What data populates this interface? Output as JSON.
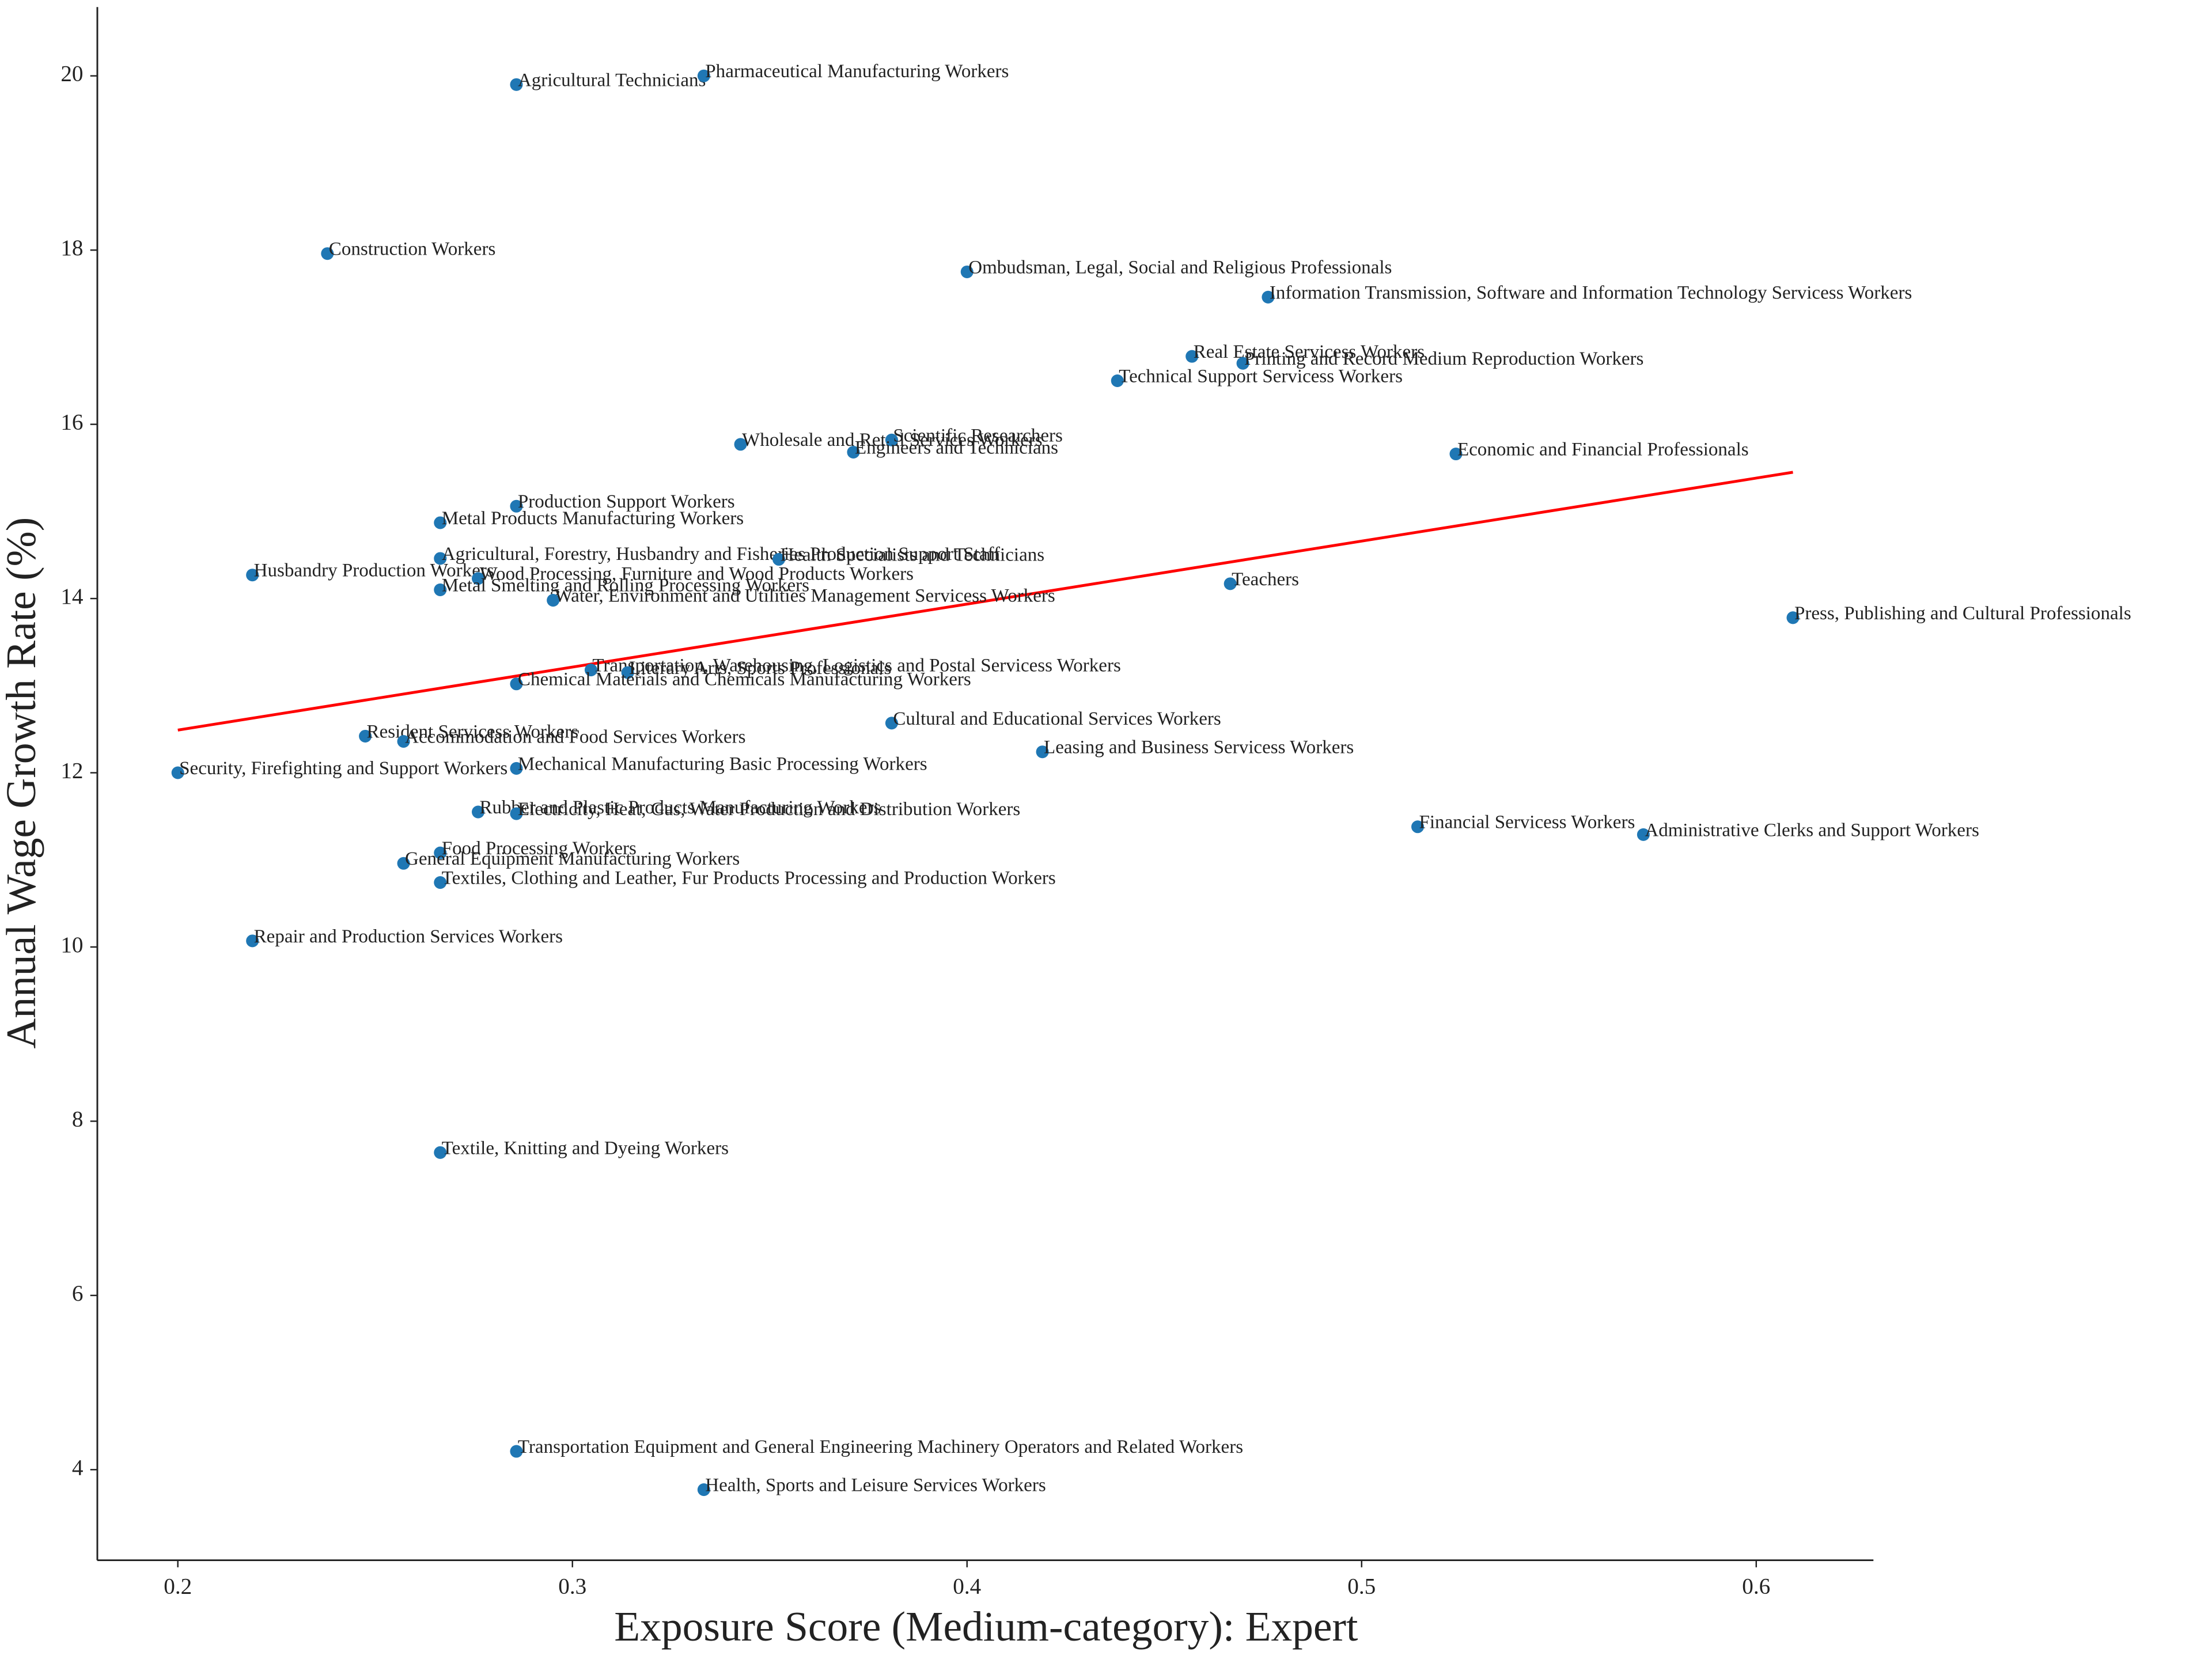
{
  "chart_data": {
    "type": "scatter",
    "x_label": "Exposure Score (Medium-category): Expert",
    "y_label": "Annual Wage Growth Rate (%)",
    "color": "#1f77b4",
    "trendline_color": "#ff0000",
    "xlim": [
      0.1796,
      0.6297
    ],
    "ylim": [
      2.96,
      20.79
    ],
    "xticks": [
      0.2,
      0.3,
      0.4,
      0.5,
      0.6
    ],
    "yticks": [
      4,
      6,
      8,
      10,
      12,
      14,
      16,
      18,
      20
    ],
    "grid": false,
    "trendline": {
      "x": [
        0.2,
        0.6093
      ],
      "y": [
        12.49,
        15.45
      ]
    },
    "labels": [
      "Agricultural Technicians",
      "Pharmaceutical Manufacturing Workers",
      "Construction Workers",
      "Ombudsman, Legal, Social and Religious Professionals",
      "Information Transmission, Software and Information Technology Servicess Workers",
      "Real Estate Servicess Workers",
      "Printing and Record Medium Reproduction Workers",
      "Technical Support Servicess Workers",
      "Wholesale and Retail Services Workers",
      "Scientific Researchers",
      "Engineers and Technicians",
      "Economic and Financial Professionals",
      "Production Support Workers",
      "Metal Products Manufacturing Workers",
      "Agricultural, Forestry, Husbandry and Fisheries Production Support Staff",
      "Health Specialists and Technicians",
      "Husbandry Production Workers",
      "Wood Processing, Furniture and Wood Products Workers",
      "Metal Smelting and Rolling Processing Workers",
      "Water, Environment and Utilities Management Servicess Workers",
      "Teachers",
      "Press, Publishing and Cultural Professionals",
      "Transportation, Warehousing, Logistics and Postal Servicess Workers",
      "Literary Arts, Sports Professionals",
      "Chemical Materials and Chemicals Manufacturing Workers",
      "Cultural and Educational Services Workers",
      "Resident Servicess Workers",
      "Accommodation and Food Services Workers",
      "Leasing and Business Servicess Workers",
      "Security, Firefighting and Support Workers",
      "Mechanical Manufacturing Basic Processing Workers",
      "Rubber and Plastic Products Manufacturing Workers",
      "Electricity, Heat, Gas, Water Production and Distribution Workers",
      "Financial Servicess Workers",
      "Administrative Clerks and Support Workers",
      "Food Processing Workers",
      "General Equipment Manufacturing Workers",
      "Textiles, Clothing and Leather, Fur Products Processing and Production Workers",
      "Repair and Production Services Workers",
      "Textile, Knitting and Dyeing Workers",
      "Transportation Equipment and General Engineering Machinery Operators and Related Workers",
      "Health, Sports and Leisure Services Workers"
    ],
    "x": [
      0.2858,
      0.3333,
      0.2379,
      0.4,
      0.4763,
      0.457,
      0.4699,
      0.4381,
      0.3426,
      0.3809,
      0.3712,
      0.5239,
      0.2858,
      0.2665,
      0.2665,
      0.3523,
      0.2189,
      0.2761,
      0.2665,
      0.2951,
      0.4667,
      0.6093,
      0.3047,
      0.314,
      0.2858,
      0.3809,
      0.2475,
      0.2572,
      0.4191,
      0.2,
      0.2858,
      0.2761,
      0.2858,
      0.5142,
      0.5714,
      0.2665,
      0.2572,
      0.2665,
      0.2189,
      0.2665,
      0.2858,
      0.3333
    ],
    "values": [
      19.9,
      20.0,
      17.96,
      17.75,
      17.46,
      16.78,
      16.7,
      16.5,
      15.77,
      15.82,
      15.68,
      15.66,
      15.06,
      14.87,
      14.46,
      14.45,
      14.27,
      14.23,
      14.1,
      13.98,
      14.17,
      13.78,
      13.18,
      13.15,
      13.02,
      12.57,
      12.42,
      12.36,
      12.24,
      12.0,
      12.05,
      11.55,
      11.53,
      11.38,
      11.29,
      11.08,
      10.96,
      10.74,
      10.07,
      7.64,
      4.21,
      3.77
    ]
  }
}
